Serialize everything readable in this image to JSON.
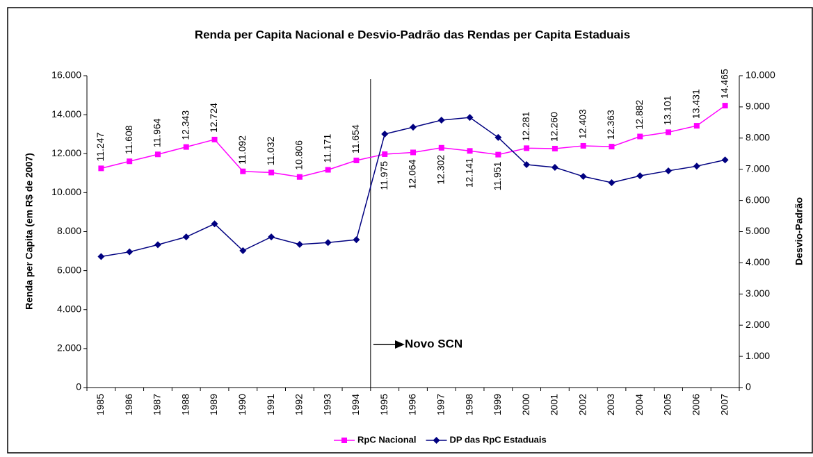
{
  "chart_data": {
    "type": "line",
    "title": "Renda per Capita Nacional e Desvio-Padrão das Rendas per Capita Estaduais",
    "y_label": "Renda per Capita (em R$ de 2007)",
    "y2_label": "Desvio-Padrão",
    "annotation": "Novo SCN",
    "categories": [
      "1985",
      "1986",
      "1987",
      "1988",
      "1989",
      "1990",
      "1991",
      "1992",
      "1993",
      "1994",
      "1995",
      "1996",
      "1997",
      "1998",
      "1999",
      "2000",
      "2001",
      "2002",
      "2003",
      "2004",
      "2005",
      "2006",
      "2007"
    ],
    "series": [
      {
        "name": "RpC Nacional",
        "color": "#ff00ff",
        "marker": "square",
        "values": [
          11247,
          11608,
          11964,
          12343,
          12724,
          11092,
          11032,
          10806,
          11171,
          11654,
          11975,
          12064,
          12302,
          12141,
          11951,
          12281,
          12260,
          12403,
          12363,
          12882,
          13101,
          13431,
          14465
        ],
        "value_labels": [
          "11.247",
          "11.608",
          "11.964",
          "12.343",
          "12.724",
          "11.092",
          "11.032",
          "10.806",
          "11.171",
          "11.654",
          "11.975",
          "12.064",
          "12.302",
          "12.141",
          "11.951",
          "12.281",
          "12.260",
          "12.403",
          "12.363",
          "12.882",
          "13.101",
          "13.431",
          "14.465"
        ]
      },
      {
        "name": "DP das RpC Estaduais",
        "color": "#000080",
        "marker": "diamond",
        "axis": "y2",
        "values": [
          4200,
          4350,
          4580,
          4830,
          5250,
          4390,
          4830,
          4590,
          4650,
          4740,
          8130,
          8350,
          8575,
          8660,
          8020,
          7150,
          7060,
          6770,
          6570,
          6790,
          6950,
          7100,
          7300
        ]
      }
    ],
    "ylim": [
      0,
      16000
    ],
    "yticks": [
      0,
      {
        "value": 2000,
        "label": "2.000"
      },
      {
        "value": 4000,
        "label": "4.000"
      },
      {
        "value": 6000,
        "label": "6.000"
      },
      {
        "value": 8000,
        "label": "8.000"
      },
      {
        "value": 10000,
        "label": "10.000"
      },
      {
        "value": 12000,
        "label": "12.000"
      },
      {
        "value": 14000,
        "label": "14.000"
      },
      {
        "value": 16000,
        "label": "16.000"
      }
    ],
    "y2lim": [
      0,
      10000
    ],
    "y2ticks": [
      0,
      {
        "value": 1000,
        "label": "1.000"
      },
      {
        "value": 2000,
        "label": "2.000"
      },
      {
        "value": 3000,
        "label": "3.000"
      },
      {
        "value": 4000,
        "label": "4.000"
      },
      {
        "value": 5000,
        "label": "5.000"
      },
      {
        "value": 6000,
        "label": "6.000"
      },
      {
        "value": 7000,
        "label": "7.000"
      },
      {
        "value": 8000,
        "label": "8.000"
      },
      {
        "value": 9000,
        "label": "9.000"
      },
      {
        "value": 10000,
        "label": "10.000"
      }
    ],
    "grid": false,
    "legend": "bottom"
  }
}
